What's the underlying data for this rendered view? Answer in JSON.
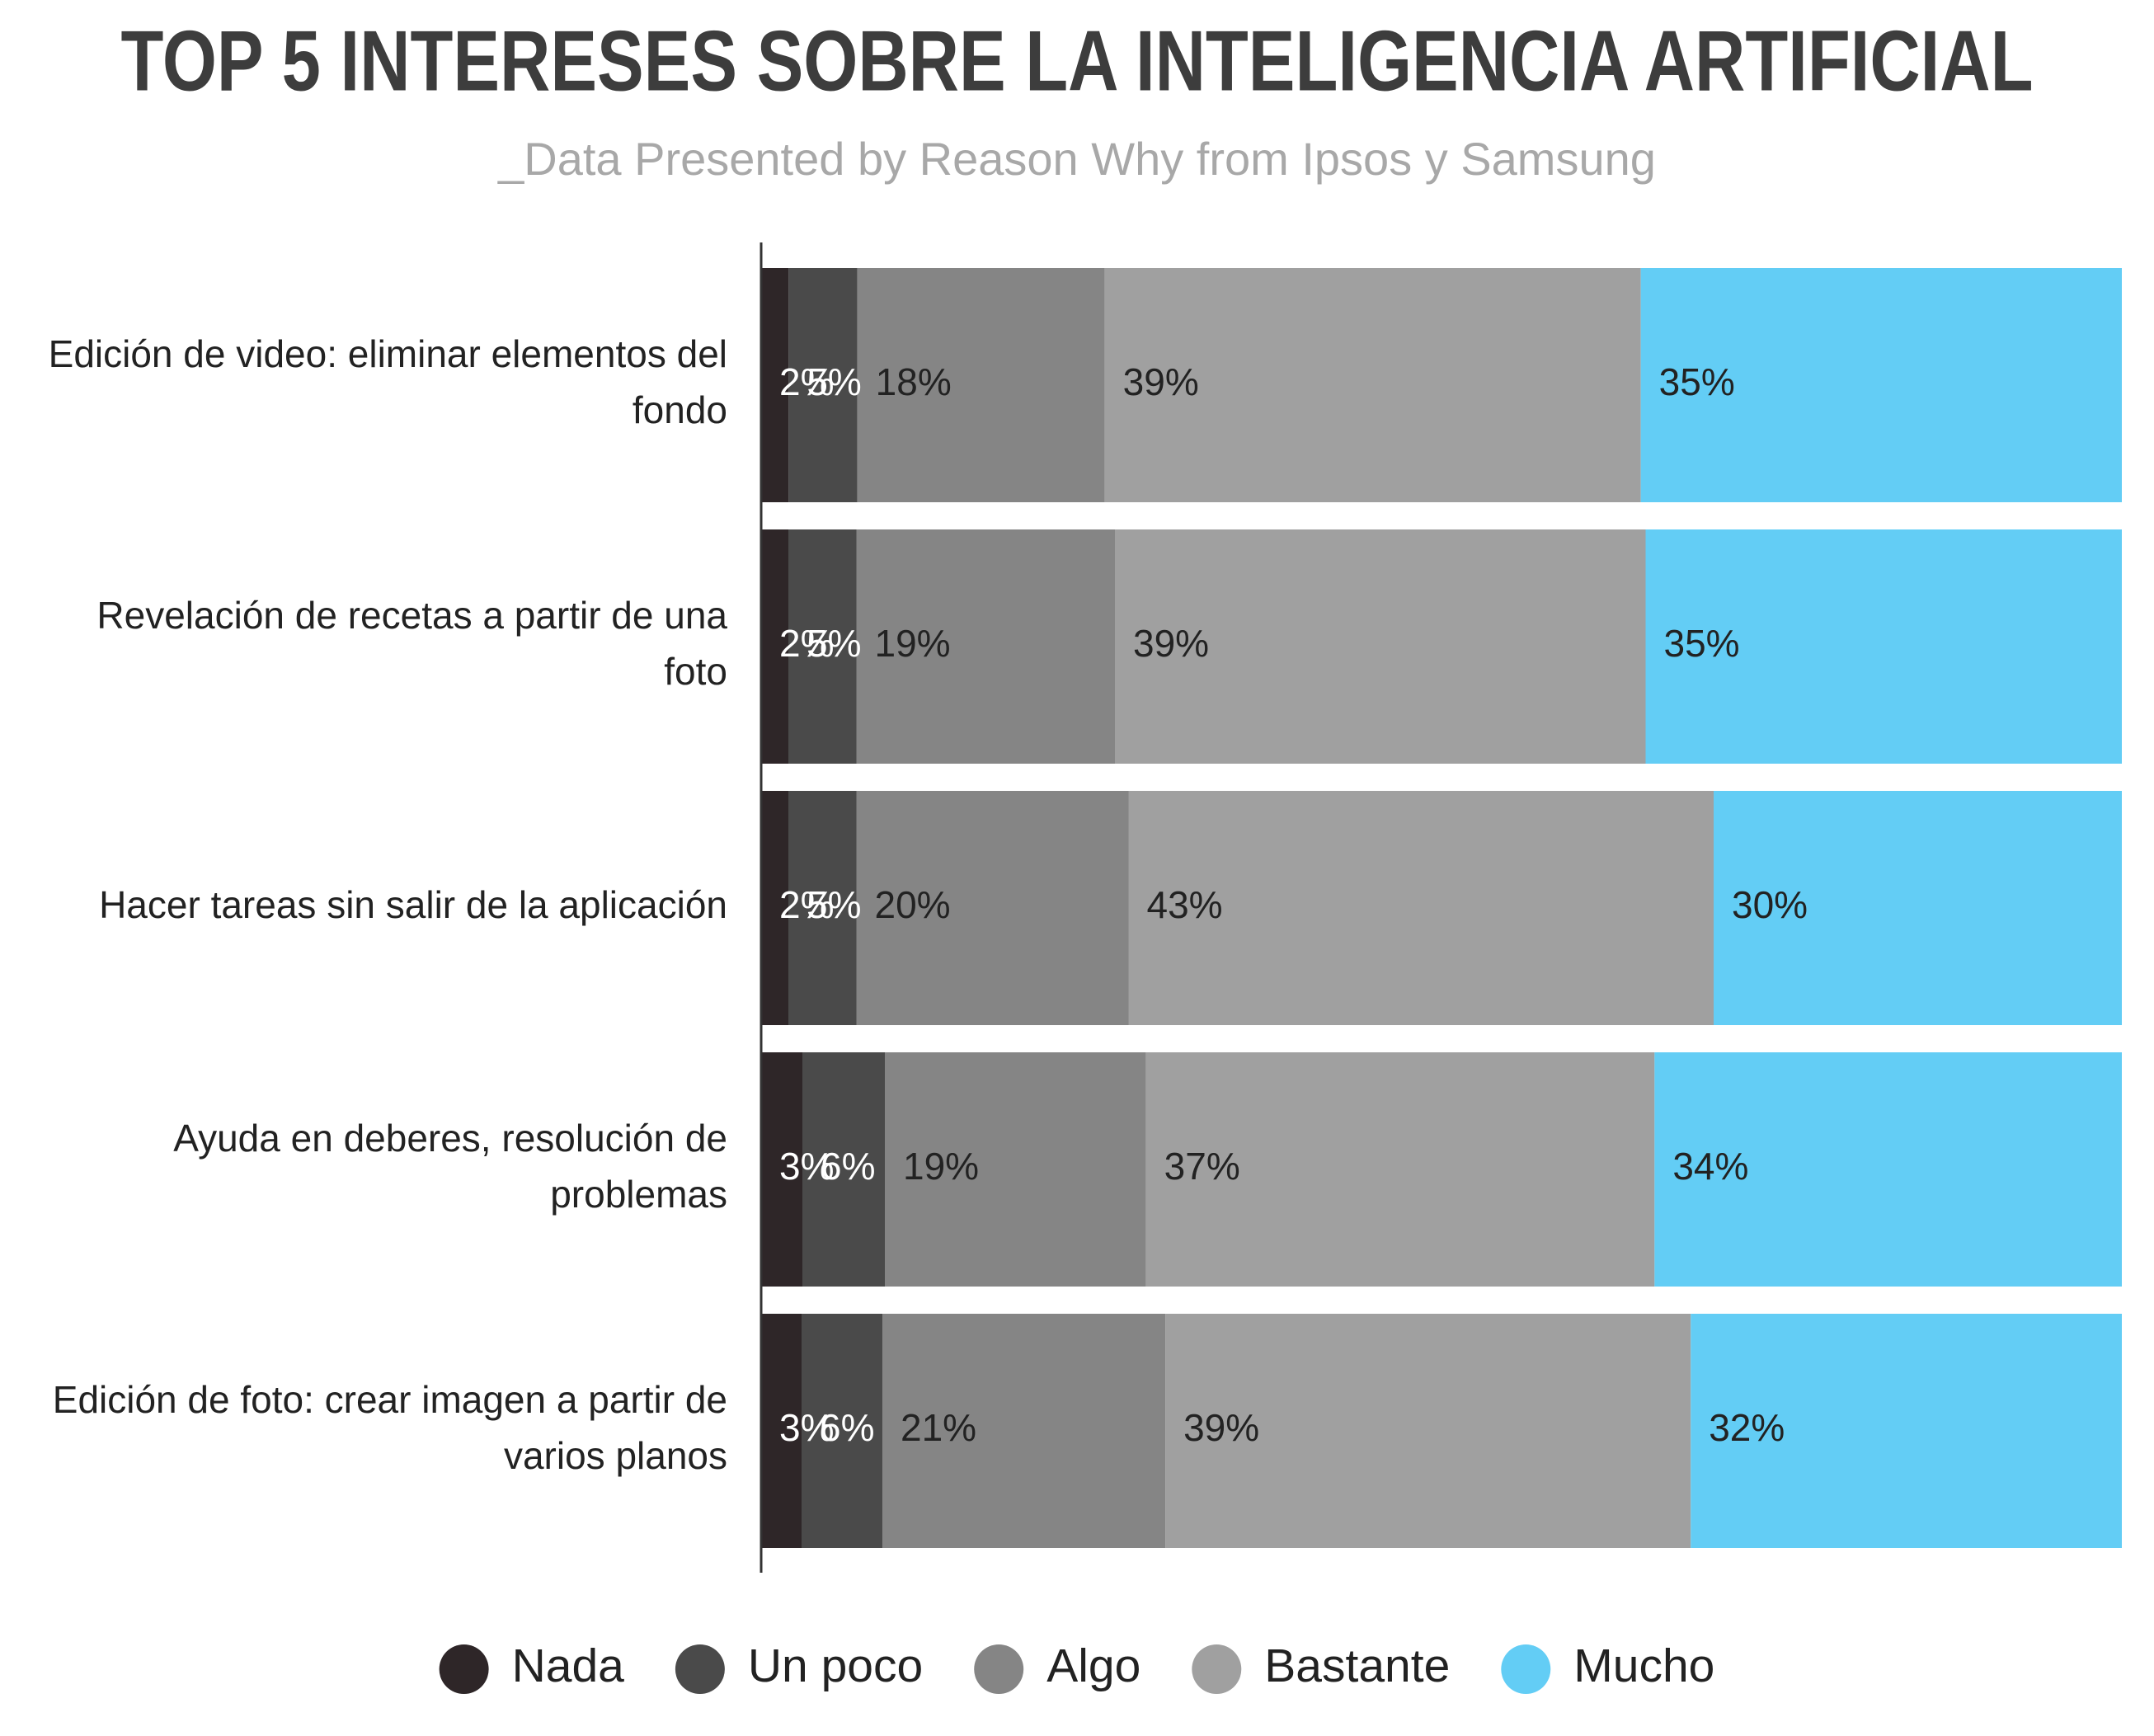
{
  "chart_data": {
    "type": "bar",
    "orientation": "horizontal",
    "stacking": "percent",
    "title": "TOP 5 INTERESES SOBRE LA INTELIGENCIA ARTIFICIAL",
    "subtitle": "_Data Presented by Reason Why from Ipsos y Samsung",
    "categories": [
      "Edición de video: eliminar elementos del fondo",
      "Revelación de recetas a partir de una foto",
      "Hacer tareas sin salir de la aplicación",
      "Ayuda en deberes, resolución de problemas",
      "Edición de foto: crear imagen a partir de varios planos"
    ],
    "series": [
      {
        "name": "Nada",
        "color": "#2e2628",
        "values": [
          2,
          2,
          2,
          3,
          3
        ],
        "value_labels": [
          "2%",
          "2%",
          "2%",
          "3%",
          "3%"
        ]
      },
      {
        "name": "Un poco",
        "color": "#4a4a4a",
        "values": [
          5,
          5,
          5,
          6,
          6
        ],
        "value_labels": [
          "5%",
          "5%",
          "5%",
          "6%",
          "6%"
        ]
      },
      {
        "name": "Algo",
        "color": "#858585",
        "values": [
          18,
          19,
          20,
          19,
          21
        ],
        "value_labels": [
          "18%",
          "19%",
          "20%",
          "19%",
          "21%"
        ]
      },
      {
        "name": "Bastante",
        "color": "#a0a0a0",
        "values": [
          39,
          39,
          43,
          37,
          39
        ],
        "value_labels": [
          "39%",
          "39%",
          "43%",
          "37%",
          "39%"
        ]
      },
      {
        "name": "Mucho",
        "color": "#63cdf5",
        "values": [
          35,
          35,
          30,
          34,
          32
        ],
        "value_labels": [
          "35%",
          "35%",
          "30%",
          "34%",
          "32%"
        ]
      }
    ],
    "legend": "bottom"
  }
}
